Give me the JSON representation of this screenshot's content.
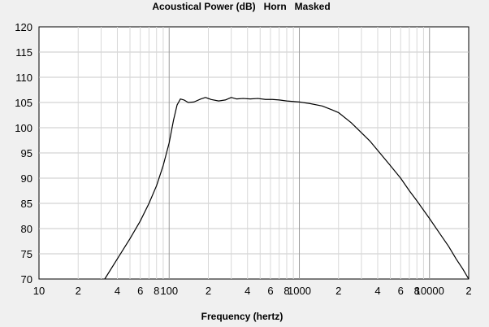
{
  "chart_data": {
    "type": "line",
    "title": "Acoustical Power (dB)   Horn   Masked",
    "xlabel": "Frequency (hertz)",
    "ylabel": "",
    "x_scale": "log",
    "xlim": [
      10,
      20000
    ],
    "ylim": [
      70,
      120
    ],
    "grid": true,
    "y_ticks": [
      70,
      75,
      80,
      85,
      90,
      95,
      100,
      105,
      110,
      115,
      120
    ],
    "x_major_ticks": [
      10,
      100,
      1000,
      10000
    ],
    "x_tick_labels": [
      {
        "value": 10,
        "label": "10"
      },
      {
        "value": 20,
        "label": "2"
      },
      {
        "value": 40,
        "label": "4"
      },
      {
        "value": 60,
        "label": "6"
      },
      {
        "value": 80,
        "label": "8"
      },
      {
        "value": 100,
        "label": "100"
      },
      {
        "value": 200,
        "label": "2"
      },
      {
        "value": 400,
        "label": "4"
      },
      {
        "value": 600,
        "label": "6"
      },
      {
        "value": 800,
        "label": "8"
      },
      {
        "value": 1000,
        "label": "1000"
      },
      {
        "value": 2000,
        "label": "2"
      },
      {
        "value": 4000,
        "label": "4"
      },
      {
        "value": 6000,
        "label": "6"
      },
      {
        "value": 8000,
        "label": "8"
      },
      {
        "value": 10000,
        "label": "10000"
      },
      {
        "value": 20000,
        "label": "2"
      }
    ],
    "series": [
      {
        "color": "#000000",
        "points": [
          [
            32,
            70
          ],
          [
            40,
            74
          ],
          [
            50,
            78
          ],
          [
            60,
            81.5
          ],
          [
            70,
            85
          ],
          [
            80,
            88.5
          ],
          [
            90,
            92.5
          ],
          [
            100,
            97
          ],
          [
            108,
            101.5
          ],
          [
            115,
            104.5
          ],
          [
            122,
            105.7
          ],
          [
            130,
            105.5
          ],
          [
            140,
            105
          ],
          [
            155,
            105.1
          ],
          [
            175,
            105.7
          ],
          [
            190,
            106
          ],
          [
            210,
            105.6
          ],
          [
            240,
            105.3
          ],
          [
            270,
            105.5
          ],
          [
            300,
            106
          ],
          [
            330,
            105.7
          ],
          [
            370,
            105.8
          ],
          [
            420,
            105.7
          ],
          [
            480,
            105.8
          ],
          [
            550,
            105.6
          ],
          [
            620,
            105.6
          ],
          [
            700,
            105.5
          ],
          [
            800,
            105.3
          ],
          [
            1000,
            105.1
          ],
          [
            1200,
            104.8
          ],
          [
            1500,
            104.3
          ],
          [
            1800,
            103.5
          ],
          [
            2000,
            103
          ],
          [
            2500,
            101
          ],
          [
            3000,
            99
          ],
          [
            3500,
            97.3
          ],
          [
            4000,
            95.5
          ],
          [
            5000,
            92.5
          ],
          [
            6000,
            90
          ],
          [
            7000,
            87.5
          ],
          [
            8000,
            85.5
          ],
          [
            10000,
            82
          ],
          [
            12000,
            79
          ],
          [
            14000,
            76.5
          ],
          [
            16000,
            74
          ],
          [
            18000,
            72
          ],
          [
            20000,
            70
          ]
        ]
      }
    ]
  }
}
